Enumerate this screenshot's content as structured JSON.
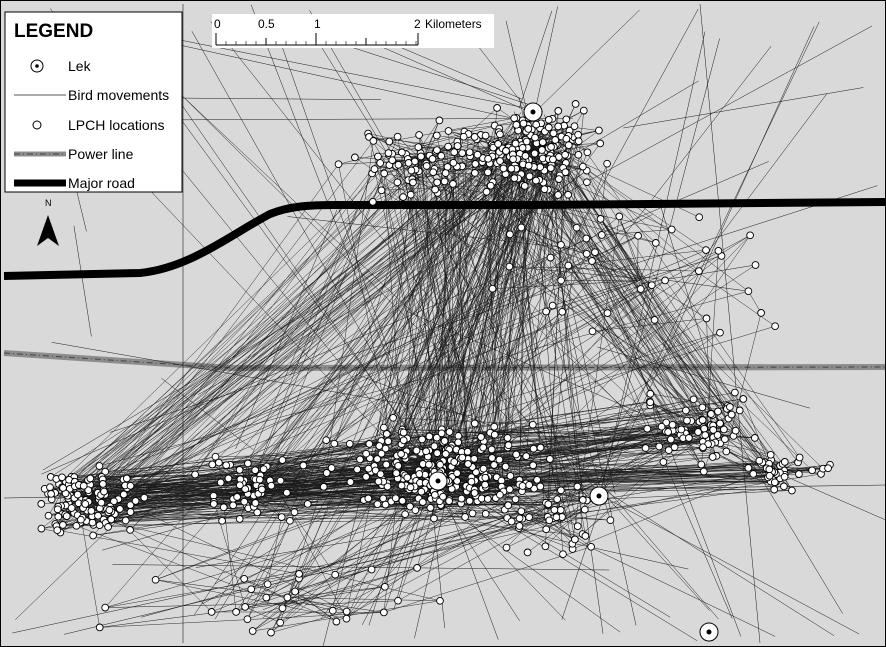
{
  "map": {
    "background_color": "#d9d9d9",
    "frame_color": "#000000"
  },
  "legend": {
    "title": "LEGEND",
    "items": [
      {
        "icon": "lek-icon",
        "label": "Lek"
      },
      {
        "icon": "bird-movement-line-icon",
        "label": "Bird movements"
      },
      {
        "icon": "location-circle-icon",
        "label": "LPCH locations"
      },
      {
        "icon": "power-line-icon",
        "label": "Power line"
      },
      {
        "icon": "major-road-icon",
        "label": "Major road"
      }
    ]
  },
  "scale_bar": {
    "ticks": [
      "0",
      "0.5",
      "1",
      "2"
    ],
    "unit_label": "Kilometers"
  },
  "north_arrow": {
    "label": "N"
  },
  "styles": {
    "road_color": "#000000",
    "power_line_color": "#8c8c8c",
    "movement_color": "#1a1a1a",
    "location_fill": "#ffffff"
  }
}
